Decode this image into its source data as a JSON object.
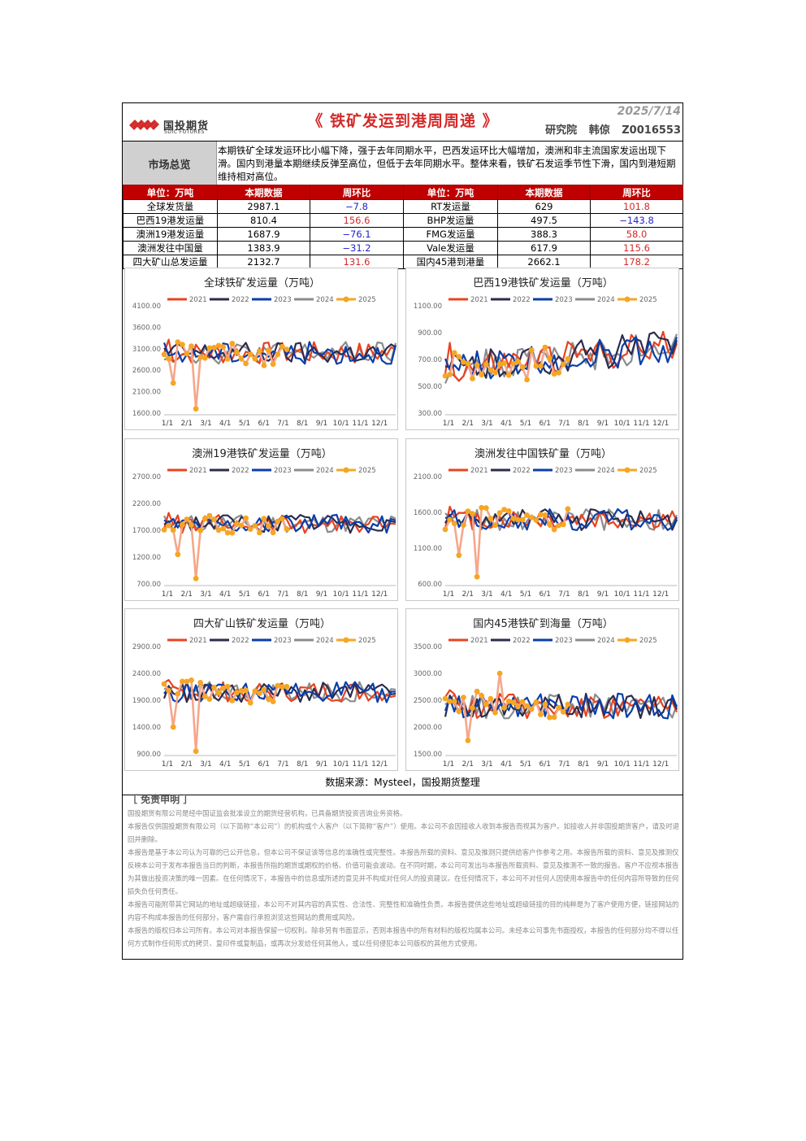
{
  "header": {
    "logo_cn": "国投期货",
    "logo_en": "SDIC FUTURES",
    "title": "《 铁矿发运到港周周递 》",
    "date": "2025/7/14",
    "dept": "研究院",
    "analyst": "韩倞",
    "license": "Z0016553"
  },
  "summary": {
    "label": "市场总览",
    "text": "本期铁矿全球发运环比小幅下降，强于去年同期水平，巴西发运环比大幅增加，澳洲和非主流国家发运出现下滑。国内到港量本期继续反弹至高位，但低于去年同期水平。整体来看，铁矿石发运季节性下滑，国内到港短期维持相对高位。"
  },
  "table": {
    "headers": [
      "单位：万吨",
      "本期数据",
      "周环比",
      "单位：万吨",
      "本期数据",
      "周环比"
    ],
    "rows": [
      {
        "l_name": "全球发货量",
        "l_val": "2987.1",
        "l_chg": "−7.8",
        "l_sign": "neg",
        "r_name": "RT发运量",
        "r_val": "629",
        "r_chg": "101.8",
        "r_sign": "pos"
      },
      {
        "l_name": "巴西19港发运量",
        "l_val": "810.4",
        "l_chg": "156.6",
        "l_sign": "pos",
        "r_name": "BHP发运量",
        "r_val": "497.5",
        "r_chg": "−143.8",
        "r_sign": "neg"
      },
      {
        "l_name": "澳洲19港发运量",
        "l_val": "1687.9",
        "l_chg": "−76.1",
        "l_sign": "neg",
        "r_name": "FMG发运量",
        "r_val": "388.3",
        "r_chg": "58.0",
        "r_sign": "pos"
      },
      {
        "l_name": "澳洲发往中国量",
        "l_val": "1383.9",
        "l_chg": "−31.2",
        "l_sign": "neg",
        "r_name": "Vale发运量",
        "r_val": "617.9",
        "r_chg": "115.6",
        "r_sign": "pos"
      },
      {
        "l_name": "四大矿山总发运量",
        "l_val": "2132.7",
        "l_chg": "131.6",
        "l_sign": "pos",
        "r_name": "国内45港到港量",
        "r_val": "2662.1",
        "r_chg": "178.2",
        "r_sign": "pos"
      }
    ]
  },
  "chart_data": [
    {
      "type": "line",
      "title": "全球铁矿发运量（万吨）",
      "yticks": [
        "4100.00",
        "3600.00",
        "3100.00",
        "2600.00",
        "2100.00",
        "1600.00"
      ],
      "ylim": [
        1600,
        4100
      ],
      "base": 3000,
      "amp": 260,
      "spikes": [
        [
          7,
          1700
        ],
        [
          2,
          2300
        ]
      ],
      "x_categories": [
        "1/1",
        "2/1",
        "3/1",
        "4/1",
        "5/1",
        "6/1",
        "7/1",
        "8/1",
        "9/1",
        "10/1",
        "11/1",
        "12/1"
      ],
      "series": [
        {
          "name": "2021",
          "color": "#e8431f"
        },
        {
          "name": "2022",
          "color": "#2b2b4d"
        },
        {
          "name": "2023",
          "color": "#0b3ea8"
        },
        {
          "name": "2024",
          "color": "#8c8c8c"
        },
        {
          "name": "2025",
          "color": "#f6a623"
        }
      ]
    },
    {
      "type": "line",
      "title": "巴西19港铁矿发运量（万吨）",
      "yticks": [
        "1100.00",
        "900.00",
        "700.00",
        "500.00",
        "300.00"
      ],
      "ylim": [
        300,
        1100
      ],
      "base": 680,
      "amp": 120,
      "spikes": [],
      "trend": 180,
      "x_categories": [
        "1/1",
        "2/1",
        "3/1",
        "4/1",
        "5/1",
        "6/1",
        "7/1",
        "8/1",
        "9/1",
        "10/1",
        "11/1",
        "12/1"
      ],
      "series": [
        {
          "name": "2021",
          "color": "#e8431f"
        },
        {
          "name": "2022",
          "color": "#2b2b4d"
        },
        {
          "name": "2023",
          "color": "#0b3ea8"
        },
        {
          "name": "2024",
          "color": "#8c8c8c"
        },
        {
          "name": "2025",
          "color": "#f6a623"
        }
      ]
    },
    {
      "type": "line",
      "title": "澳洲19港铁矿发运量（万吨）",
      "yticks": [
        "2700.00",
        "2200.00",
        "1700.00",
        "1200.00",
        "700.00"
      ],
      "ylim": [
        700,
        2700
      ],
      "base": 1820,
      "amp": 170,
      "spikes": [
        [
          7,
          800
        ],
        [
          3,
          1250
        ]
      ],
      "x_categories": [
        "1/1",
        "2/1",
        "3/1",
        "4/1",
        "5/1",
        "6/1",
        "7/1",
        "8/1",
        "9/1",
        "10/1",
        "11/1",
        "12/1"
      ],
      "series": [
        {
          "name": "2021",
          "color": "#e8431f"
        },
        {
          "name": "2022",
          "color": "#2b2b4d"
        },
        {
          "name": "2023",
          "color": "#0b3ea8"
        },
        {
          "name": "2024",
          "color": "#8c8c8c"
        },
        {
          "name": "2025",
          "color": "#f6a623"
        }
      ]
    },
    {
      "type": "line",
      "title": "澳洲发往中国铁矿量（万吨）",
      "yticks": [
        "2100.00",
        "1600.00",
        "1100.00",
        "600.00"
      ],
      "ylim": [
        600,
        2100
      ],
      "base": 1500,
      "amp": 150,
      "spikes": [
        [
          7,
          700
        ],
        [
          3,
          1000
        ]
      ],
      "x_categories": [
        "1/1",
        "2/1",
        "3/1",
        "4/1",
        "5/1",
        "6/1",
        "7/1",
        "8/1",
        "9/1",
        "10/1",
        "11/1",
        "12/1"
      ],
      "series": [
        {
          "name": "2021",
          "color": "#e8431f"
        },
        {
          "name": "2022",
          "color": "#2b2b4d"
        },
        {
          "name": "2023",
          "color": "#0b3ea8"
        },
        {
          "name": "2024",
          "color": "#8c8c8c"
        },
        {
          "name": "2025",
          "color": "#f6a623"
        }
      ]
    },
    {
      "type": "line",
      "title": "四大矿山铁矿发运量（万吨）",
      "yticks": [
        "2900.00",
        "2400.00",
        "1900.00",
        "1400.00",
        "900.00"
      ],
      "ylim": [
        900,
        2900
      ],
      "base": 2050,
      "amp": 190,
      "spikes": [
        [
          7,
          950
        ],
        [
          2,
          1400
        ]
      ],
      "x_categories": [
        "1/1",
        "2/1",
        "3/1",
        "4/1",
        "5/1",
        "6/1",
        "7/1",
        "8/1",
        "9/1",
        "10/1",
        "11/1",
        "12/1"
      ],
      "series": [
        {
          "name": "2021",
          "color": "#e8431f"
        },
        {
          "name": "2022",
          "color": "#2b2b4d"
        },
        {
          "name": "2023",
          "color": "#0b3ea8"
        },
        {
          "name": "2024",
          "color": "#8c8c8c"
        },
        {
          "name": "2025",
          "color": "#f6a623"
        }
      ]
    },
    {
      "type": "line",
      "title": "国内45港铁矿到海量（万吨）",
      "yticks": [
        "3500.00",
        "3000.00",
        "2500.00",
        "2000.00",
        "1500.00"
      ],
      "ylim": [
        1500,
        3500
      ],
      "base": 2400,
      "amp": 240,
      "spikes": [
        [
          5,
          1750
        ],
        [
          12,
          3000
        ]
      ],
      "x_categories": [
        "1/1",
        "2/1",
        "3/1",
        "4/1",
        "5/1",
        "6/1",
        "7/1",
        "8/1",
        "9/1",
        "10/1",
        "11/1",
        "12/1"
      ],
      "series": [
        {
          "name": "2021",
          "color": "#e8431f"
        },
        {
          "name": "2022",
          "color": "#2b2b4d"
        },
        {
          "name": "2023",
          "color": "#0b3ea8"
        },
        {
          "name": "2024",
          "color": "#8c8c8c"
        },
        {
          "name": "2025",
          "color": "#f6a623"
        }
      ]
    }
  ],
  "source": "数据来源：Mysteel，国投期货整理",
  "disclaimer": {
    "title": "［ 免责申明 ］",
    "paragraphs": [
      "国投期货有限公司是经中国证监会批准设立的期货经营机构，已具备期货投资咨询业务资格。",
      "本报告仅供国投期货有限公司（以下简称“本公司”）的机构或个人客户（以下简称“客户”）使用。本公司不会因接收人收到本报告而视其为客户。如接收人并非国投期货客户，请及时退回并删除。",
      "本报告是基于本公司认为可靠的已公开信息，但本公司不保证该等信息的准确性或完整性。本报告所载的资料、意见及推测只提供给客户作参考之用。本报告所载的资料、意见及推测仅反映本公司于发布本报告当日的判断，本报告所指的期货或期权的价格、价值可能会波动。在不同时期，本公司可发出与本报告所载资料、意见及推测不一致的报告。客户不应视本报告为其做出投资决策的唯一因素。在任何情况下，本报告中的信息或所述的意见并不构成对任何人的投资建议。在任何情况下，本公司不对任何人因使用本报告中的任何内容所导致的任何损失负任何责任。",
      "本报告可能附带其它网站的地址或超级链接，本公司不对其内容的真实性、合法性、完整性和准确性负责。本报告提供这些地址或超级链接的目的纯粹是为了客户使用方便，链接网站的内容不构成本报告的任何部分，客户需自行承担浏览这些网站的费用或风险。",
      "本报告的版权归本公司所有。本公司对本报告保留一切权利。除非另有书面显示，否则本报告中的所有材料的版权均属本公司。未经本公司事先书面授权，本报告的任何部分均不得以任何方式制作任何形式的拷贝、复印件或复制品，或再次分发给任何其他人，或以任何侵犯本公司版权的其他方式使用。"
    ]
  }
}
